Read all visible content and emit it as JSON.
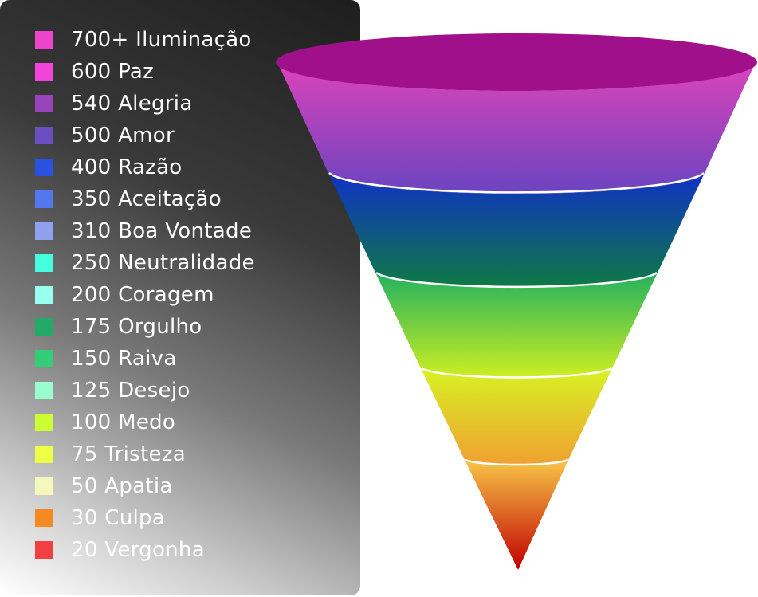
{
  "legend": {
    "items": [
      {
        "label": "700+ Iluminação",
        "color": "#ee44cc"
      },
      {
        "label": "600 Paz",
        "color": "#f244d8"
      },
      {
        "label": "540 Alegria",
        "color": "#9944bb"
      },
      {
        "label": "500 Amor",
        "color": "#6a4fc0"
      },
      {
        "label": "400 Razão",
        "color": "#2a52e0"
      },
      {
        "label": "350 Aceitação",
        "color": "#5577ee"
      },
      {
        "label": "310 Boa Vontade",
        "color": "#8fa0ee"
      },
      {
        "label": "250 Neutralidade",
        "color": "#44ffdd"
      },
      {
        "label": "200 Coragem",
        "color": "#99ffee"
      },
      {
        "label": "175 Orgulho",
        "color": "#22aa66"
      },
      {
        "label": "150 Raiva",
        "color": "#33cc77"
      },
      {
        "label": "125 Desejo",
        "color": "#99ffcc"
      },
      {
        "label": "100 Medo",
        "color": "#ccff33"
      },
      {
        "label": "75 Tristeza",
        "color": "#eeff44"
      },
      {
        "label": "50 Apatia",
        "color": "#f5f8bb"
      },
      {
        "label": "30 Culpa",
        "color": "#f58a22"
      },
      {
        "label": "20 Vergonha",
        "color": "#f04040"
      }
    ]
  }
}
